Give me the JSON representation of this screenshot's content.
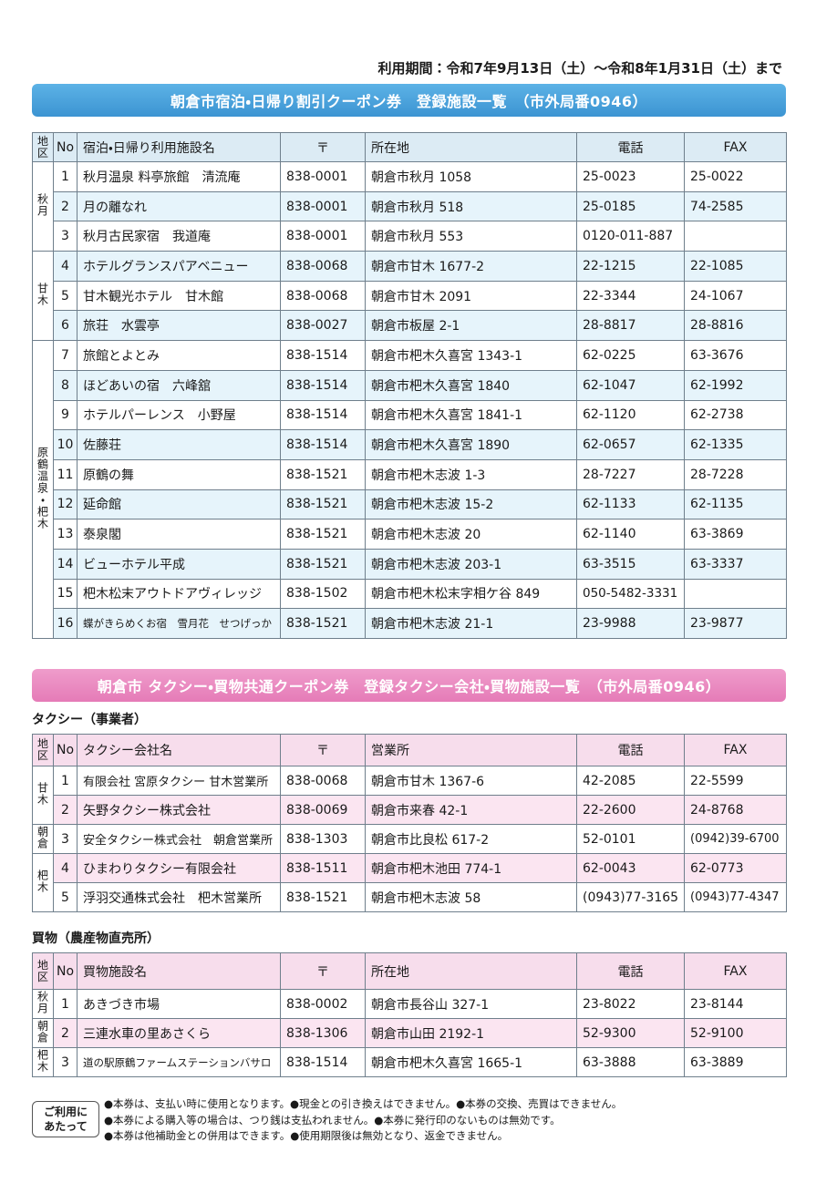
{
  "period": "利用期間：令和7年9月13日（土）～令和8年1月31日（土）まで",
  "lodging": {
    "title": "朝倉市宿泊・日帰り割引クーポン券　登録施設一覧　（市外局番0946）",
    "header": [
      "地区",
      "No",
      "宿泊・日帰り利用施設名",
      "〒",
      "所在地",
      "電話",
      "FAX"
    ],
    "groups": [
      {
        "district": "秋月",
        "rows": [
          [
            "1",
            "秋月温泉 料亭旅館　清流庵",
            "838-0001",
            "朝倉市秋月 1058",
            "25-0023",
            "25-0022"
          ],
          [
            "2",
            "月の離なれ",
            "838-0001",
            "朝倉市秋月 518",
            "25-0185",
            "74-2585"
          ],
          [
            "3",
            "秋月古民家宿　我道庵",
            "838-0001",
            "朝倉市秋月 553",
            "0120-011-887",
            null
          ]
        ]
      },
      {
        "district": "甘木",
        "rows": [
          [
            "4",
            "ホテルグランスパアベニュー",
            "838-0068",
            "朝倉市甘木 1677-2",
            "22-1215",
            "22-1085"
          ],
          [
            "5",
            "甘木観光ホテル　甘木館",
            "838-0068",
            "朝倉市甘木 2091",
            "22-3344",
            "24-1067"
          ],
          [
            "6",
            "旅荘　水雲亭",
            "838-0027",
            "朝倉市板屋 2-1",
            "28-8817",
            "28-8816"
          ]
        ]
      },
      {
        "district": "原鶴温泉・杷木",
        "rows": [
          [
            "7",
            "旅館とよとみ",
            "838-1514",
            "朝倉市杷木久喜宮 1343-1",
            "62-0225",
            "63-3676"
          ],
          [
            "8",
            "ほどあいの宿　六峰舘",
            "838-1514",
            "朝倉市杷木久喜宮 1840",
            "62-1047",
            "62-1992"
          ],
          [
            "9",
            "ホテルパーレンス　小野屋",
            "838-1514",
            "朝倉市杷木久喜宮 1841-1",
            "62-1120",
            "62-2738"
          ],
          [
            "10",
            "佐藤荘",
            "838-1514",
            "朝倉市杷木久喜宮 1890",
            "62-0657",
            "62-1335"
          ],
          [
            "11",
            "原鶴の舞",
            "838-1521",
            "朝倉市杷木志波 1-3",
            "28-7227",
            "28-7228"
          ],
          [
            "12",
            "延命館",
            "838-1521",
            "朝倉市杷木志波 15-2",
            "62-1133",
            "62-1135"
          ],
          [
            "13",
            "泰泉閣",
            "838-1521",
            "朝倉市杷木志波 20",
            "62-1140",
            "63-3869"
          ],
          [
            "14",
            "ビューホテル平成",
            "838-1521",
            "朝倉市杷木志波 203-1",
            "63-3515",
            "63-3337"
          ],
          [
            "15",
            "杷木松末アウトドアヴィレッジ",
            "838-1502",
            "朝倉市杷木松末字相ケ谷 849",
            "050-5482-3331",
            null
          ],
          [
            "16",
            "蝶がきらめくお宿　雪月花　せつげっか",
            "838-1521",
            "朝倉市杷木志波 21-1",
            "23-9988",
            "23-9877"
          ]
        ]
      }
    ]
  },
  "transport": {
    "title": "朝倉市 タクシー・買物共通クーポン券　登録タクシー会社・買物施設一覧　（市外局番0946）",
    "taxi": {
      "heading": "タクシー（事業者）",
      "header": [
        "地区",
        "No",
        "タクシー会社名",
        "〒",
        "営業所",
        "電話",
        "FAX"
      ],
      "groups": [
        {
          "district": "甘木",
          "rows": [
            [
              "1",
              "有限会社 宮原タクシー 甘木営業所",
              "838-0068",
              "朝倉市甘木 1367-6",
              "42-2085",
              "22-5599"
            ],
            [
              "2",
              "矢野タクシー株式会社",
              "838-0069",
              "朝倉市来春 42-1",
              "22-2600",
              "24-8768"
            ]
          ]
        },
        {
          "district": "朝倉",
          "rows": [
            [
              "3",
              "安全タクシー株式会社　朝倉営業所",
              "838-1303",
              "朝倉市比良松 617-2",
              "52-0101",
              "(0942)39-6700"
            ]
          ]
        },
        {
          "district": "杷木",
          "rows": [
            [
              "4",
              "ひまわりタクシー有限会社",
              "838-1511",
              "朝倉市杷木池田 774-1",
              "62-0043",
              "62-0773"
            ],
            [
              "5",
              "浮羽交通株式会社　杷木営業所",
              "838-1521",
              "朝倉市杷木志波 58",
              "(0943)77-3165",
              "(0943)77-4347"
            ]
          ]
        }
      ]
    },
    "shopping": {
      "heading": "買物（農産物直売所）",
      "header": [
        "地区",
        "No",
        "買物施設名",
        "〒",
        "所在地",
        "電話",
        "FAX"
      ],
      "groups": [
        {
          "district": "秋月",
          "rows": [
            [
              "1",
              "あきづき市場",
              "838-0002",
              "朝倉市長谷山 327-1",
              "23-8022",
              "23-8144"
            ]
          ]
        },
        {
          "district": "朝倉",
          "rows": [
            [
              "2",
              "三連水車の里あさくら",
              "838-1306",
              "朝倉市山田 2192-1",
              "52-9300",
              "52-9100"
            ]
          ]
        },
        {
          "district": "杷木",
          "rows": [
            [
              "3",
              "道の駅原鶴ファームステーションバサロ",
              "838-1514",
              "朝倉市杷木久喜宮 1665-1",
              "63-3888",
              "63-3889"
            ]
          ]
        }
      ]
    }
  },
  "notes": {
    "label": [
      "ご利用に",
      "あたって"
    ],
    "lines": [
      "●本券は、支払い時に使用となります。●現金との引き換えはできません。●本券の交換、売買はできません。",
      "●本券による購入等の場合は、つり銭は支払われません。●本券に発行印のないものは無効です。",
      "●本券は他補助金との併用はできます。●使用期限後は無効となり、返金できません。"
    ]
  }
}
